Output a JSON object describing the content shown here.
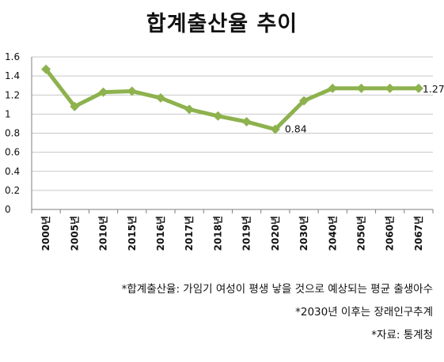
{
  "chart_data": {
    "type": "line",
    "title": "합계출산율 추이",
    "categories": [
      "2000년",
      "2005년",
      "2010년",
      "2015년",
      "2016년",
      "2017년",
      "2018년",
      "2019년",
      "2020년",
      "2030년",
      "2040년",
      "2050년",
      "2060년",
      "2067년"
    ],
    "series": [
      {
        "values": [
          1.47,
          1.08,
          1.23,
          1.24,
          1.17,
          1.05,
          0.98,
          0.92,
          0.84,
          1.14,
          1.27,
          1.27,
          1.27,
          1.27
        ]
      }
    ],
    "ylim": [
      0,
      1.6
    ],
    "yticks": [
      "0",
      "0.2",
      "0.4",
      "0.6",
      "0.8",
      "1",
      "1.2",
      "1.4",
      "1.6"
    ],
    "annotations": [
      {
        "index": 8,
        "text": "0.84"
      },
      {
        "index": 13,
        "text": "1.27"
      }
    ],
    "grid": true,
    "colors": {
      "line": "#8db24e",
      "grid": "#c8c8c8",
      "axis": "#7f7f7f"
    }
  },
  "notes": [
    "*합계출산율: 가임기 여성이 평생 낳을 것으로 예상되는 평균 출생아수",
    "*2030년 이후는 장래인구추계",
    "*자료: 통계청"
  ]
}
